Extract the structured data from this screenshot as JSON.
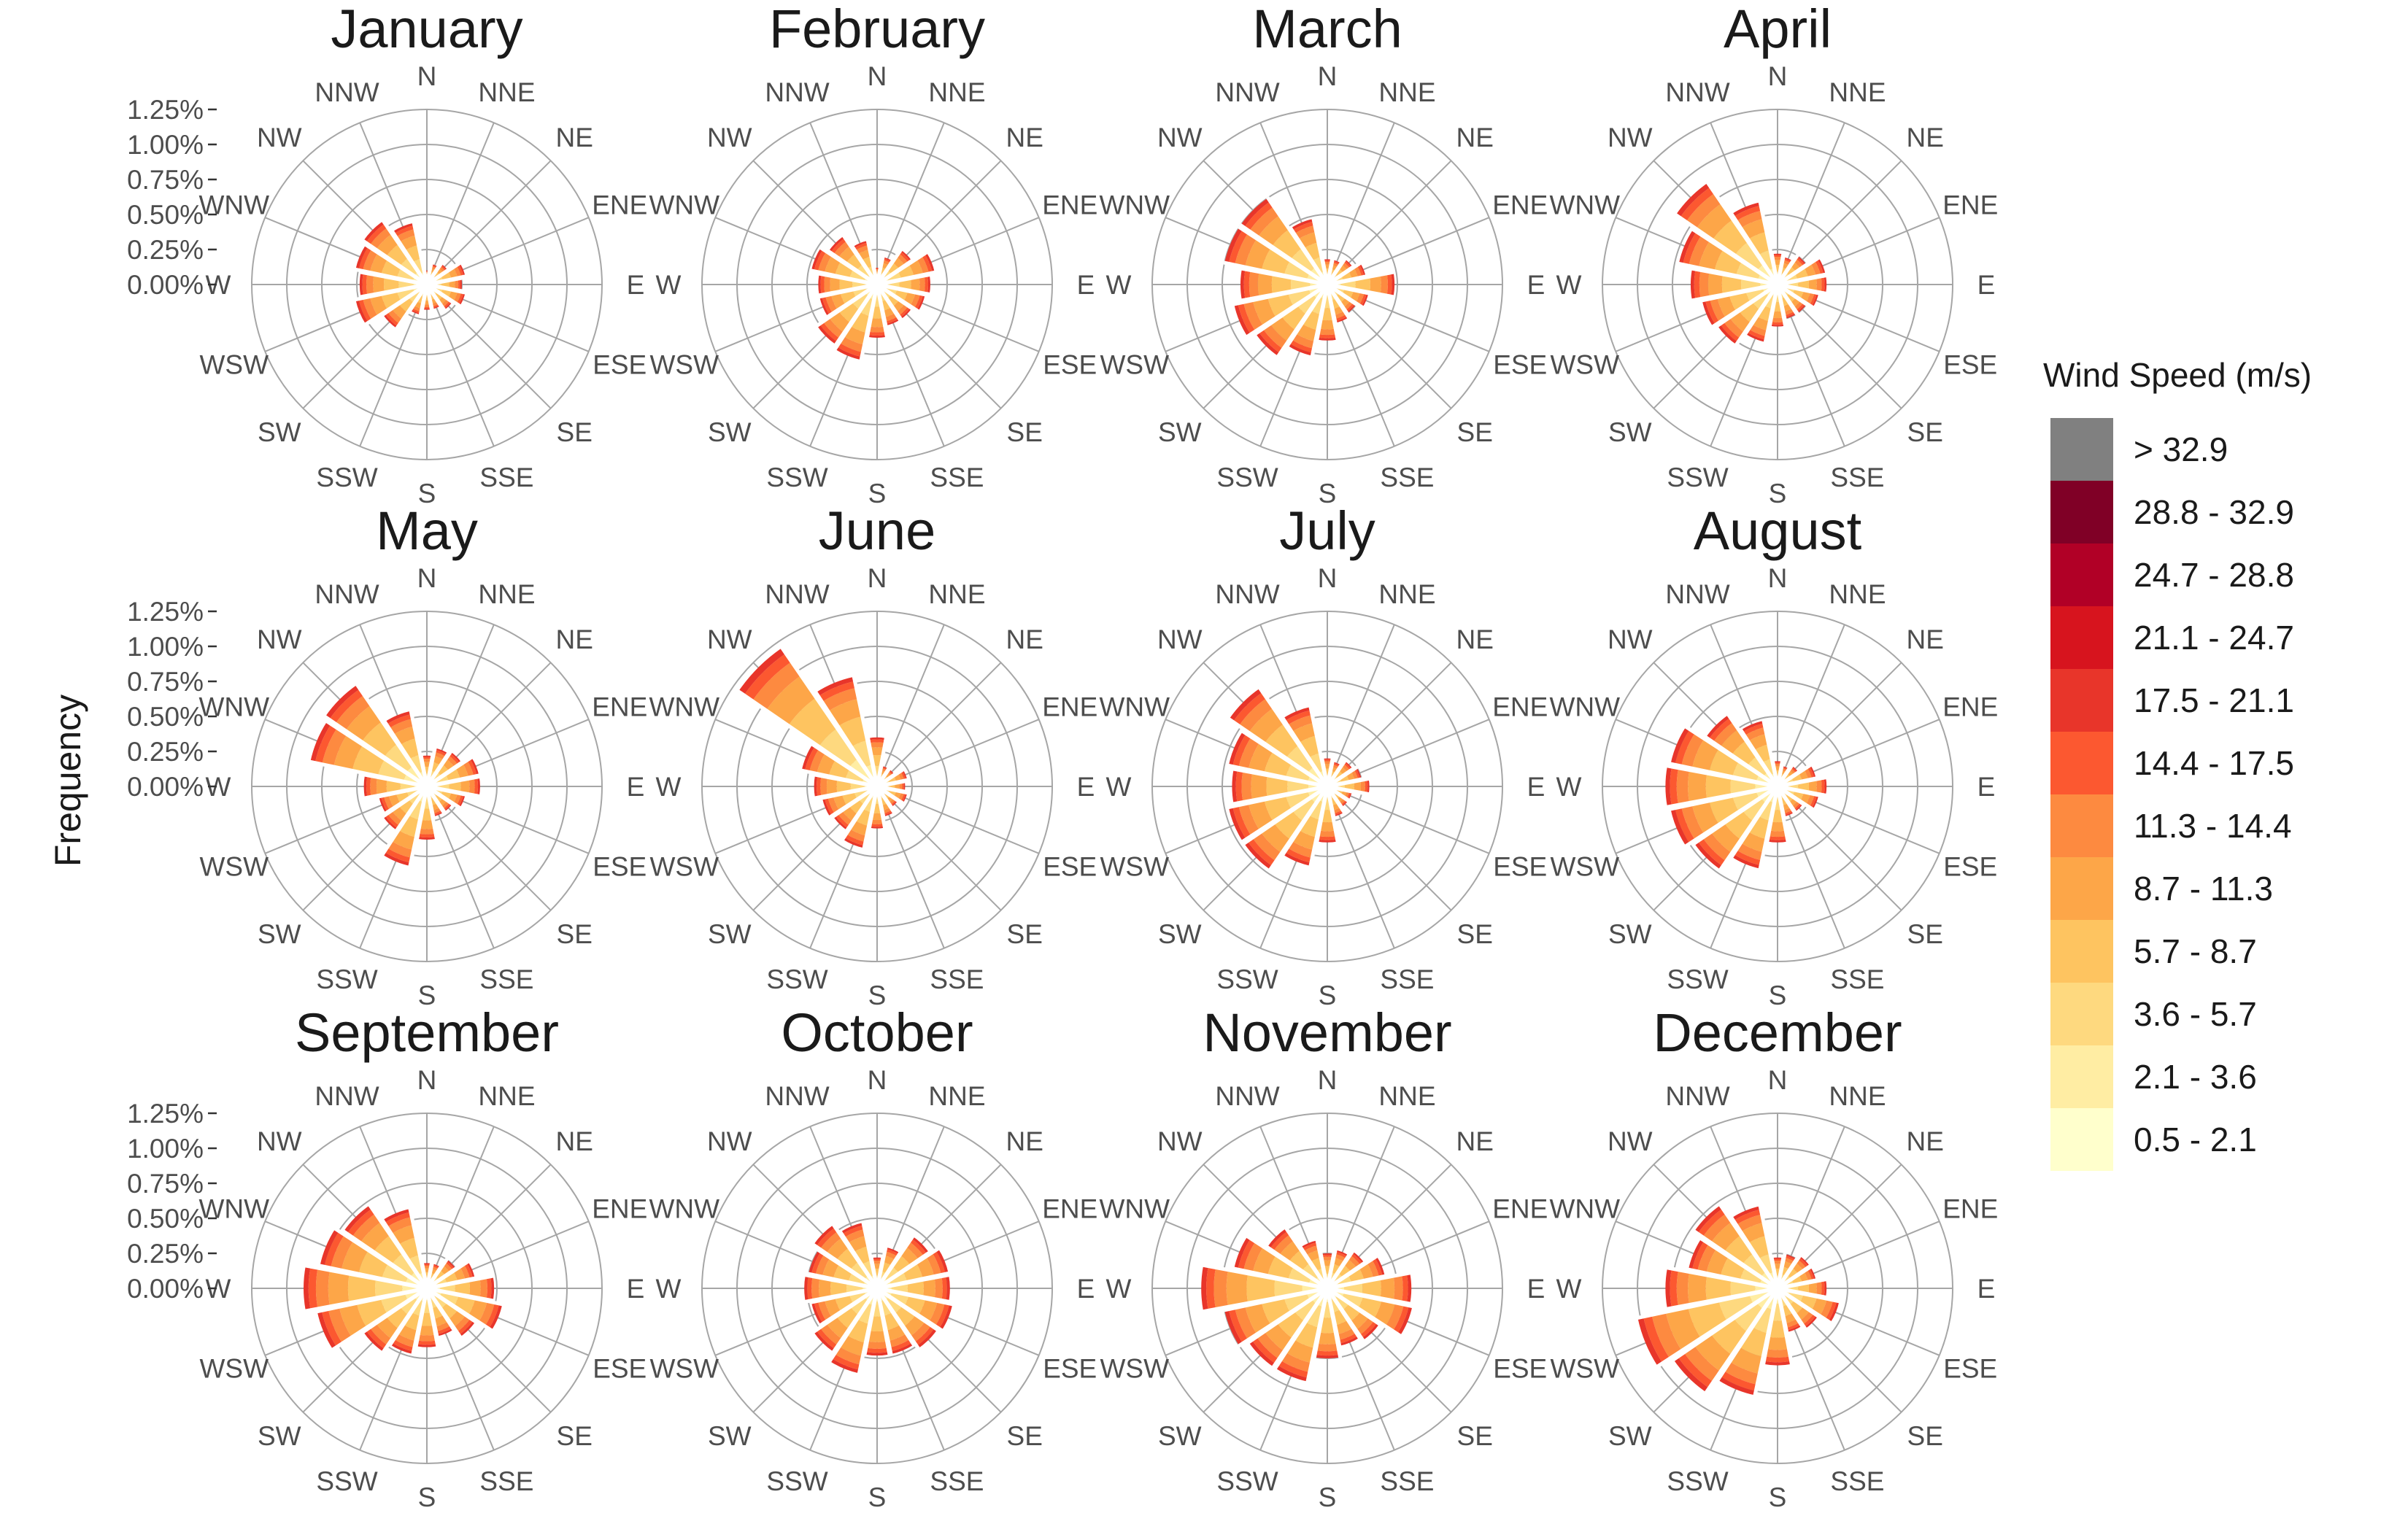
{
  "chart_data": {
    "type": "wind_rose",
    "ylabel": "Frequency",
    "r_ticks": [
      0,
      0.25,
      0.5,
      0.75,
      1.0,
      1.25
    ],
    "r_tick_labels": [
      "0.00%",
      "0.25%",
      "0.50%",
      "0.75%",
      "1.00%",
      "1.25%"
    ],
    "r_max": 1.25,
    "directions": [
      "N",
      "NNE",
      "NE",
      "ENE",
      "E",
      "ESE",
      "SE",
      "SSE",
      "S",
      "SSW",
      "SW",
      "WSW",
      "W",
      "WNW",
      "NW",
      "NNW"
    ],
    "legend": {
      "title": "Wind Speed (m/s)",
      "bins": [
        {
          "label": "> 32.9",
          "color": "#808080"
        },
        {
          "label": "28.8 - 32.9",
          "color": "#800026"
        },
        {
          "label": "24.7 - 28.8",
          "color": "#b10026"
        },
        {
          "label": "21.1 - 24.7",
          "color": "#d7141e"
        },
        {
          "label": "17.5 - 21.1",
          "color": "#e8352a"
        },
        {
          "label": "14.4 - 17.5",
          "color": "#fc5830"
        },
        {
          "label": "11.3 - 14.4",
          "color": "#fd8a40"
        },
        {
          "label": "8.7 - 11.3",
          "color": "#fda648"
        },
        {
          "label": "5.7 - 8.7",
          "color": "#fec460"
        },
        {
          "label": "3.6 - 5.7",
          "color": "#fed97f"
        },
        {
          "label": "2.1 - 3.6",
          "color": "#ffeda3"
        },
        {
          "label": "0.5 - 2.1",
          "color": "#ffffcc"
        }
      ]
    },
    "panels": [
      {
        "title": "January",
        "totals": [
          0.1,
          0.15,
          0.18,
          0.28,
          0.25,
          0.28,
          0.22,
          0.18,
          0.18,
          0.22,
          0.38,
          0.52,
          0.48,
          0.52,
          0.55,
          0.45
        ]
      },
      {
        "title": "February",
        "totals": [
          0.12,
          0.2,
          0.3,
          0.42,
          0.38,
          0.35,
          0.3,
          0.3,
          0.38,
          0.55,
          0.52,
          0.42,
          0.42,
          0.48,
          0.42,
          0.32
        ]
      },
      {
        "title": "March",
        "totals": [
          0.18,
          0.18,
          0.22,
          0.28,
          0.48,
          0.3,
          0.25,
          0.28,
          0.4,
          0.52,
          0.62,
          0.68,
          0.62,
          0.75,
          0.75,
          0.48
        ]
      },
      {
        "title": "April",
        "totals": [
          0.22,
          0.2,
          0.25,
          0.35,
          0.35,
          0.3,
          0.25,
          0.25,
          0.3,
          0.42,
          0.52,
          0.55,
          0.62,
          0.72,
          0.88,
          0.6
        ]
      },
      {
        "title": "May",
        "totals": [
          0.22,
          0.28,
          0.3,
          0.38,
          0.38,
          0.28,
          0.22,
          0.22,
          0.38,
          0.58,
          0.38,
          0.35,
          0.45,
          0.85,
          0.88,
          0.55
        ]
      },
      {
        "title": "June",
        "totals": [
          0.35,
          0.15,
          0.15,
          0.22,
          0.2,
          0.22,
          0.18,
          0.22,
          0.3,
          0.45,
          0.38,
          0.4,
          0.45,
          0.55,
          1.2,
          0.8
        ]
      },
      {
        "title": "July",
        "totals": [
          0.2,
          0.18,
          0.22,
          0.25,
          0.3,
          0.18,
          0.18,
          0.22,
          0.4,
          0.58,
          0.72,
          0.72,
          0.68,
          0.72,
          0.85,
          0.58
        ]
      },
      {
        "title": "August",
        "totals": [
          0.18,
          0.15,
          0.18,
          0.28,
          0.35,
          0.3,
          0.22,
          0.22,
          0.4,
          0.6,
          0.72,
          0.78,
          0.8,
          0.78,
          0.62,
          0.48
        ]
      },
      {
        "title": "September",
        "totals": [
          0.18,
          0.18,
          0.25,
          0.35,
          0.48,
          0.55,
          0.42,
          0.35,
          0.42,
          0.48,
          0.55,
          0.8,
          0.88,
          0.78,
          0.72,
          0.58
        ]
      },
      {
        "title": "October",
        "totals": [
          0.22,
          0.3,
          0.45,
          0.52,
          0.52,
          0.55,
          0.52,
          0.48,
          0.48,
          0.62,
          0.55,
          0.48,
          0.52,
          0.5,
          0.55,
          0.48
        ]
      },
      {
        "title": "November",
        "totals": [
          0.25,
          0.28,
          0.32,
          0.42,
          0.6,
          0.62,
          0.45,
          0.42,
          0.5,
          0.68,
          0.68,
          0.75,
          0.9,
          0.68,
          0.52,
          0.35
        ]
      },
      {
        "title": "December",
        "totals": [
          0.22,
          0.25,
          0.28,
          0.28,
          0.35,
          0.45,
          0.35,
          0.32,
          0.55,
          0.78,
          0.9,
          1.02,
          0.8,
          0.65,
          0.72,
          0.6
        ]
      }
    ]
  }
}
